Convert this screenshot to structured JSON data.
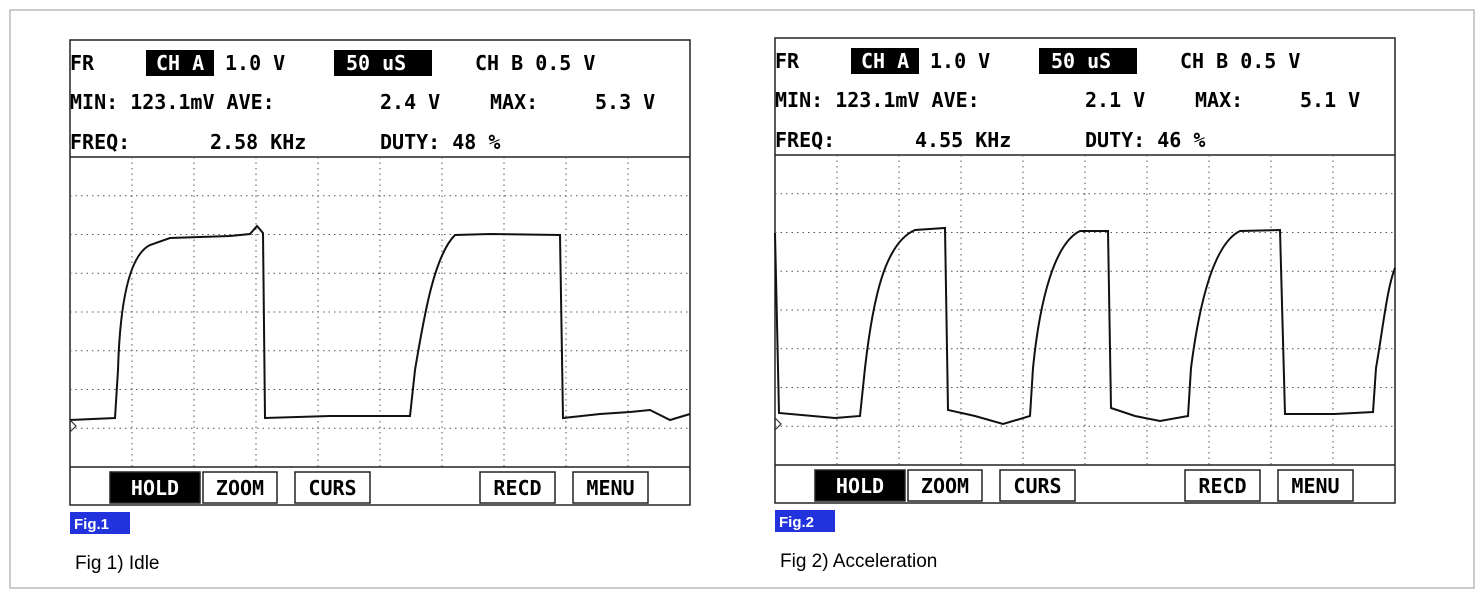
{
  "panels": [
    {
      "rows": [
        [
          "FR",
          "CH A",
          "1.0 V",
          "50 uS",
          "CH B 0.5 V"
        ],
        [
          "MIN: 123.1mV AVE:",
          "2.4 V",
          "MAX:",
          "5.3 V"
        ],
        [
          "FREQ:",
          "2.58 KHz",
          "DUTY: 48 %"
        ]
      ],
      "buttons": [
        "HOLD",
        "ZOOM",
        "CURS",
        "RECD",
        "MENU"
      ],
      "fig_label": "Fig.1",
      "caption": "Fig 1) Idle"
    },
    {
      "rows": [
        [
          "FR",
          "CH A",
          "1.0 V",
          "50 uS",
          "CH B 0.5 V"
        ],
        [
          "MIN: 123.1mV AVE:",
          "2.1 V",
          "MAX:",
          "5.1 V"
        ],
        [
          "FREQ:",
          "4.55 KHz",
          "DUTY: 46 %"
        ]
      ],
      "buttons": [
        "HOLD",
        "ZOOM",
        "CURS",
        "RECD",
        "MENU"
      ],
      "fig_label": "Fig.2",
      "caption": "Fig 2) Acceleration"
    }
  ]
}
